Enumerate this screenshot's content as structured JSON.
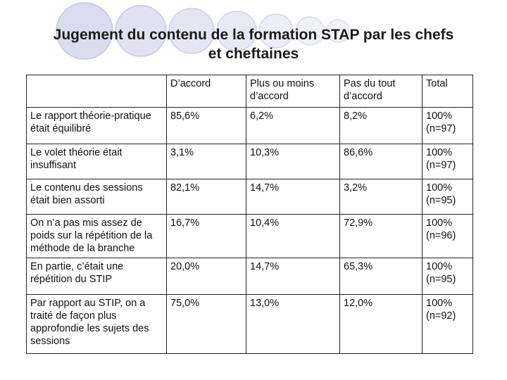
{
  "title_line1": "Jugement du contenu de la formation STAP par les chefs",
  "title_line2": "et cheftaines",
  "columns": [
    "",
    "D’accord",
    "Plus ou moins d’accord",
    "Pas du tout d’accord",
    "Total"
  ],
  "rows": [
    {
      "label": "Le rapport théorie-pratique était équilibré",
      "d": "85,6%",
      "p": "6,2%",
      "n": "8,2%",
      "t1": "100%",
      "t2": "(n=97)",
      "hl": "d"
    },
    {
      "label": "Le volet théorie était insuffisant",
      "d": "3,1%",
      "p": "10,3%",
      "n": "86,6%",
      "t1": "100%",
      "t2": "(n=97)",
      "hl": "n"
    },
    {
      "label": "Le contenu des sessions était bien assorti",
      "d": "82,1%",
      "p": "14,7%",
      "n": "3,2%",
      "t1": "100%",
      "t2": "(n=95)",
      "hl": "d"
    },
    {
      "label": "On n’a pas mis assez de poids sur la répétition de la méthode de la branche",
      "d": "16,7%",
      "p": "10,4%",
      "n": "72,9%",
      "t1": "100%",
      "t2": "(n=96)",
      "hl": "n"
    },
    {
      "label": "En partie, c’était une répétition du STIP",
      "d": "20,0%",
      "p": "14,7%",
      "n": "65,3%",
      "t1": "100%",
      "t2": "(n=95)",
      "hl": "n"
    },
    {
      "label": "Par rapport au STIP, on a traité de façon plus approfondie les sujets des sessions",
      "d": "75,0%",
      "p": "13,0%",
      "n": "12,0%",
      "t1": "100%",
      "t2": "(n=92)",
      "hl": "d"
    }
  ],
  "colors": {
    "circle_fill": "#d6d6ee",
    "circle_stroke": "#b8b8dc",
    "border": "#222222"
  }
}
